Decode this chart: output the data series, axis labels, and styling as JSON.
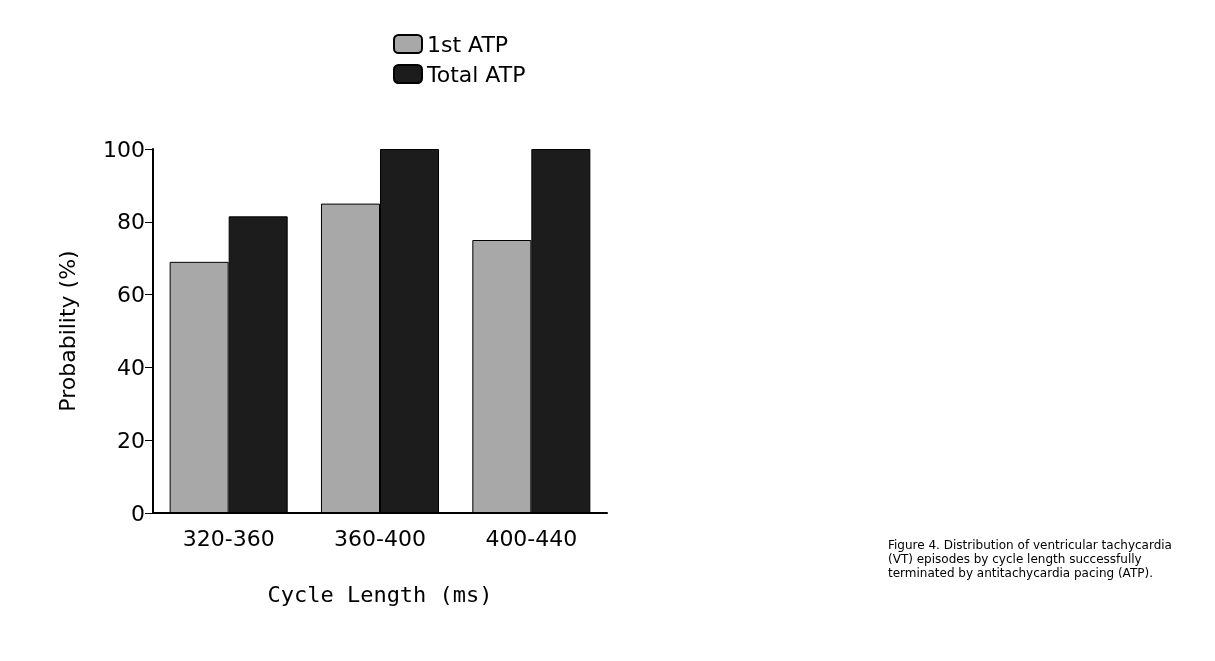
{
  "chart_data": {
    "type": "bar",
    "categories": [
      "320-360",
      "360-400",
      "400-440"
    ],
    "series": [
      {
        "name": "1st ATP",
        "color": "#a8a8a8",
        "values": [
          69,
          85,
          75
        ]
      },
      {
        "name": "Total ATP",
        "color": "#1c1c1c",
        "values": [
          81.5,
          100,
          100
        ]
      }
    ],
    "xlabel": "Cycle Length (ms)",
    "ylabel": "Probability (%)",
    "ylim": [
      0,
      100
    ],
    "yticks": [
      0,
      20,
      40,
      60,
      80,
      100
    ],
    "legend": "top",
    "grid": false,
    "annotations": [
      "Figure 4. Distribution of ventricular tachycardia (VT) episodes by cycle length successfully terminated by antitachycardia pacing (ATP)."
    ]
  }
}
